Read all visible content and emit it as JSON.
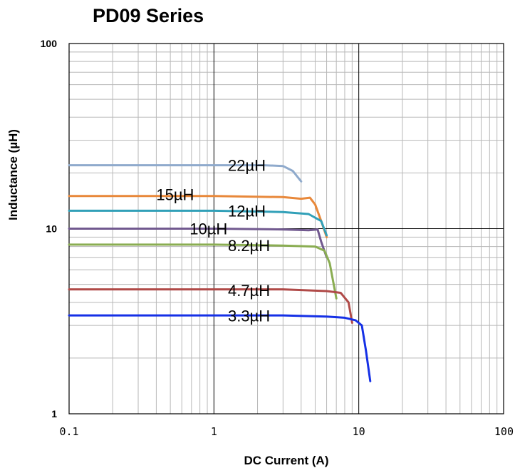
{
  "chart_data": {
    "type": "line",
    "title": "PD09 Series",
    "xlabel": "DC Current (A)",
    "ylabel": "Inductance (µH)",
    "xscale": "log",
    "yscale": "log",
    "xlim": [
      0.1,
      100
    ],
    "ylim": [
      1,
      100
    ],
    "grid": true,
    "legend": "inline-labels",
    "x_ticks": [
      {
        "value": 0.1,
        "label": "0.1"
      },
      {
        "value": 1,
        "label": "1"
      },
      {
        "value": 10,
        "label": "10"
      },
      {
        "value": 100,
        "label": "100"
      }
    ],
    "y_ticks": [
      {
        "value": 1,
        "label": "1"
      },
      {
        "value": 10,
        "label": "10"
      },
      {
        "value": 100,
        "label": "100"
      }
    ],
    "series": [
      {
        "name": "22µH",
        "color": "#8faacc",
        "label_at": {
          "x": 1.25,
          "y": 22
        },
        "points": [
          [
            0.1,
            22
          ],
          [
            1,
            22
          ],
          [
            2.2,
            22
          ],
          [
            3,
            21.8
          ],
          [
            3.5,
            20.5
          ],
          [
            4,
            18
          ]
        ]
      },
      {
        "name": "15µH",
        "color": "#e8883a",
        "label_at": {
          "x": 0.4,
          "y": 15.3
        },
        "points": [
          [
            0.1,
            15
          ],
          [
            1,
            15
          ],
          [
            3,
            14.8
          ],
          [
            4,
            14.5
          ],
          [
            4.6,
            14.7
          ],
          [
            5,
            13.5
          ],
          [
            5.5,
            11
          ],
          [
            6,
            9
          ]
        ]
      },
      {
        "name": "12µH",
        "color": "#31a0b8",
        "label_at": {
          "x": 1.25,
          "y": 12.5
        },
        "points": [
          [
            0.1,
            12.5
          ],
          [
            1,
            12.5
          ],
          [
            3,
            12.3
          ],
          [
            4.5,
            12
          ],
          [
            5.5,
            11
          ],
          [
            6,
            9.2
          ]
        ]
      },
      {
        "name": "10µH",
        "color": "#71598f",
        "label_at": {
          "x": 0.68,
          "y": 10
        },
        "points": [
          [
            0.1,
            10
          ],
          [
            1,
            10
          ],
          [
            3,
            9.9
          ],
          [
            4.5,
            9.8
          ],
          [
            5.2,
            9.9
          ],
          [
            5.5,
            8.5
          ],
          [
            6,
            7
          ]
        ]
      },
      {
        "name": "8.2µH",
        "color": "#8aad52",
        "label_at": {
          "x": 1.25,
          "y": 8.1
        },
        "points": [
          [
            0.1,
            8.2
          ],
          [
            1,
            8.2
          ],
          [
            3,
            8.1
          ],
          [
            5,
            8
          ],
          [
            5.8,
            7.6
          ],
          [
            6.3,
            6.5
          ],
          [
            7,
            4.2
          ]
        ]
      },
      {
        "name": "4.7µH",
        "color": "#b04a48",
        "label_at": {
          "x": 1.25,
          "y": 4.65
        },
        "points": [
          [
            0.1,
            4.7
          ],
          [
            1,
            4.7
          ],
          [
            3,
            4.7
          ],
          [
            6,
            4.6
          ],
          [
            7.5,
            4.5
          ],
          [
            8.5,
            4
          ],
          [
            9,
            3.1
          ]
        ]
      },
      {
        "name": "3.3µH",
        "color": "#1530e6",
        "label_at": {
          "x": 1.25,
          "y": 3.38
        },
        "points": [
          [
            0.1,
            3.4
          ],
          [
            1,
            3.4
          ],
          [
            3,
            3.4
          ],
          [
            6,
            3.35
          ],
          [
            8,
            3.3
          ],
          [
            9.5,
            3.2
          ],
          [
            10.5,
            3
          ],
          [
            11.2,
            2.2
          ],
          [
            12,
            1.5
          ]
        ]
      }
    ]
  }
}
